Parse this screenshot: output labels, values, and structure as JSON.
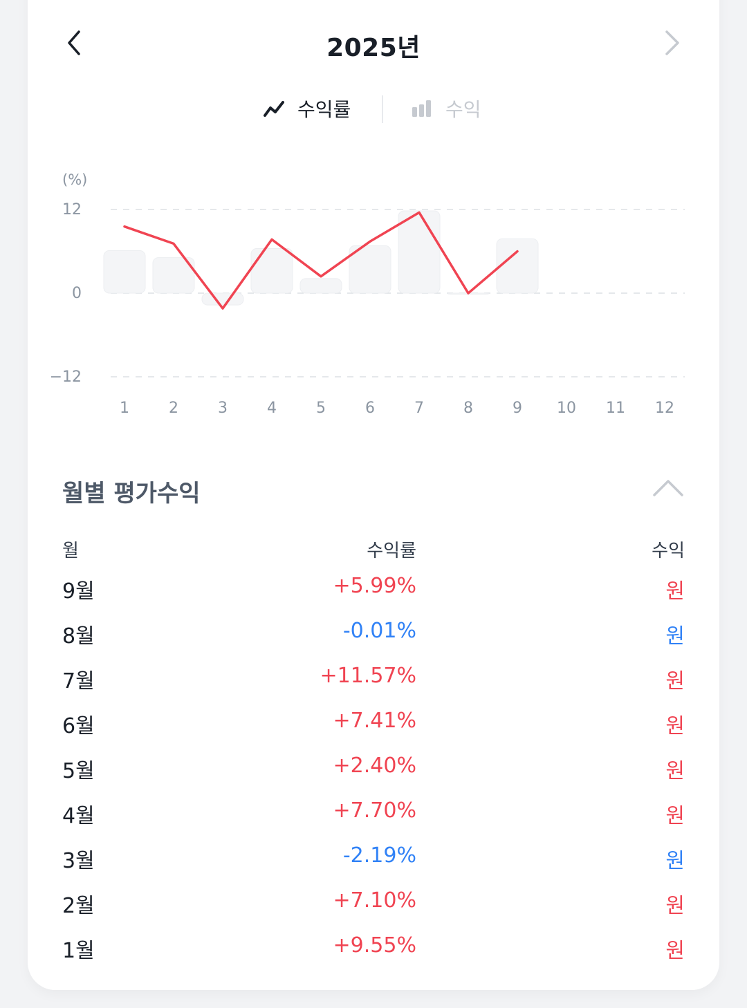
{
  "header": {
    "title": "2025년",
    "prev_icon": "chevron-left-icon",
    "next_icon": "chevron-right-icon"
  },
  "toggle": {
    "rate_label": "수익률",
    "rate_icon": "line-chart-icon",
    "profit_label": "수익",
    "profit_icon": "bar-chart-icon",
    "selected": "rate"
  },
  "colors": {
    "accent_red": "#f04452",
    "accent_blue": "#3182f6",
    "bar_fill": "#f4f5f7",
    "text": "#191f28",
    "muted": "#8b95a1"
  },
  "chart_data": {
    "type": "line",
    "unit_label": "(%)",
    "x": [
      1,
      2,
      3,
      4,
      5,
      6,
      7,
      8,
      9,
      10,
      11,
      12
    ],
    "x_tick_labels": [
      "1",
      "2",
      "3",
      "4",
      "5",
      "6",
      "7",
      "8",
      "9",
      "10",
      "11",
      "12"
    ],
    "y_ticks": [
      12,
      0,
      -12
    ],
    "y_tick_labels": [
      "12",
      "0",
      "−12"
    ],
    "ylim": [
      -12,
      12
    ],
    "grid": true,
    "line_series": {
      "values": [
        9.55,
        7.1,
        -2.19,
        7.7,
        2.4,
        7.41,
        11.57,
        -0.01,
        5.99,
        null,
        null,
        null
      ],
      "color": "#f04452"
    },
    "bar_series": {
      "values": [
        6.1,
        5.1,
        -1.7,
        6.4,
        2.1,
        6.8,
        11.8,
        0.0,
        7.8,
        null,
        null,
        null
      ],
      "color": "#f4f5f7"
    }
  },
  "section": {
    "title": "월별 평가수익",
    "collapse_icon": "chevron-up-icon"
  },
  "table": {
    "headers": {
      "month": "월",
      "rate": "수익률",
      "profit": "수익"
    },
    "rows": [
      {
        "month": "9월",
        "rate": "+5.99%",
        "profit": "원",
        "sign": "pos"
      },
      {
        "month": "8월",
        "rate": "-0.01%",
        "profit": "원",
        "sign": "neg"
      },
      {
        "month": "7월",
        "rate": "+11.57%",
        "profit": "원",
        "sign": "pos"
      },
      {
        "month": "6월",
        "rate": "+7.41%",
        "profit": "원",
        "sign": "pos"
      },
      {
        "month": "5월",
        "rate": "+2.40%",
        "profit": "원",
        "sign": "pos"
      },
      {
        "month": "4월",
        "rate": "+7.70%",
        "profit": "원",
        "sign": "pos"
      },
      {
        "month": "3월",
        "rate": "-2.19%",
        "profit": "원",
        "sign": "neg"
      },
      {
        "month": "2월",
        "rate": "+7.10%",
        "profit": "원",
        "sign": "pos"
      },
      {
        "month": "1월",
        "rate": "+9.55%",
        "profit": "원",
        "sign": "pos"
      }
    ]
  }
}
